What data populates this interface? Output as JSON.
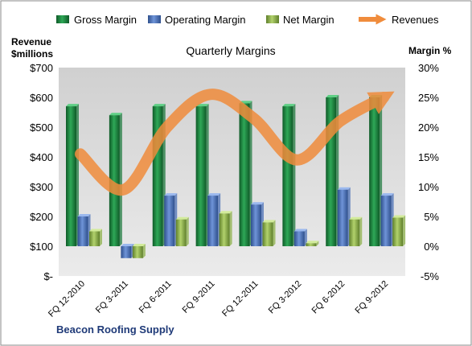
{
  "chart_data": {
    "type": "bar",
    "title": "Quarterly Margins",
    "left_axis_title_line1": "Revenue",
    "left_axis_title_line2": "$millions",
    "right_axis_title": "Margin %",
    "footer": "Beacon Roofing Supply",
    "categories": [
      "FQ 12-2010",
      "FQ 3-2011",
      "FQ 6-2011",
      "FQ 9-2011",
      "FQ 12-2011",
      "FQ 3-2012",
      "FQ 6-2012",
      "FQ 9-2012"
    ],
    "left_axis": {
      "min": 0,
      "max": 700,
      "step": 100,
      "ticks": [
        "$-",
        "$100",
        "$200",
        "$300",
        "$400",
        "$500",
        "$600",
        "$700"
      ]
    },
    "right_axis": {
      "min": -5,
      "max": 30,
      "step": 5,
      "ticks": [
        "-5%",
        "0%",
        "5%",
        "10%",
        "15%",
        "20%",
        "25%",
        "30%"
      ]
    },
    "series": [
      {
        "name": "Gross Margin",
        "axis": "right",
        "kind": "bar",
        "color": "#1e7a3e",
        "values": [
          23.5,
          22.0,
          23.5,
          23.5,
          24.0,
          23.5,
          25.0,
          25.0
        ]
      },
      {
        "name": "Operating Margin",
        "axis": "right",
        "kind": "bar",
        "color": "#4a6fb5",
        "values": [
          5.0,
          -2.0,
          8.5,
          8.5,
          7.0,
          2.5,
          9.5,
          8.5
        ]
      },
      {
        "name": "Net Margin",
        "axis": "right",
        "kind": "bar",
        "color": "#8cb04a",
        "values": [
          2.5,
          -2.0,
          4.5,
          5.5,
          4.0,
          0.5,
          4.5,
          4.8
        ]
      },
      {
        "name": "Revenues",
        "axis": "left",
        "kind": "line",
        "color": "#f08c3c",
        "values": [
          410,
          290,
          500,
          610,
          530,
          390,
          520,
          600
        ]
      }
    ],
    "legend_position": "top",
    "grid": false
  }
}
